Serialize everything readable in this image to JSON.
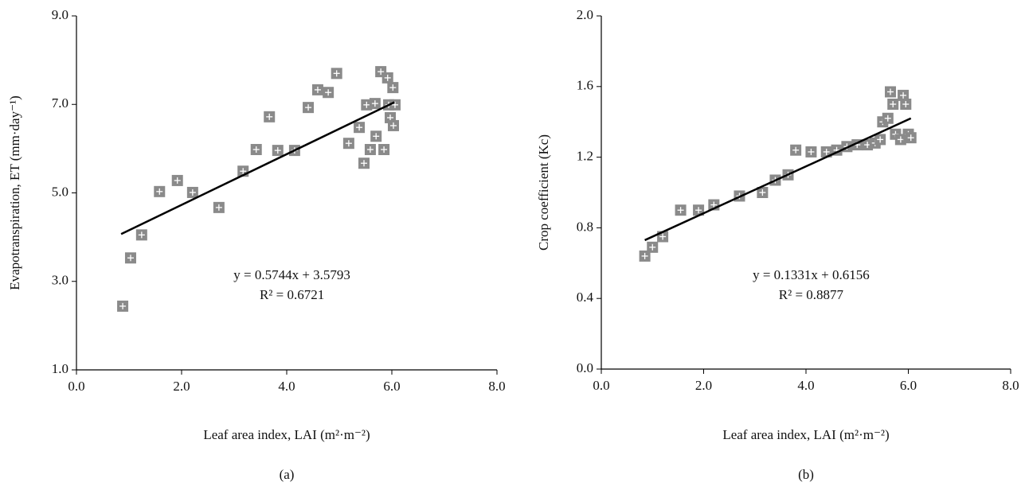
{
  "chart_data": [
    {
      "type": "scatter",
      "caption": "(a)",
      "xlabel": "Leaf area index, LAI (m²·m⁻²)",
      "ylabel": "Evapotranspiration, ET (mm·day⁻¹)",
      "annotations": [
        "y = 0.5744x + 3.5793",
        "R² = 0.6721"
      ],
      "color": "#8a8a8a",
      "xlim": [
        0,
        8
      ],
      "ylim": [
        1,
        9
      ],
      "xticks": [
        {
          "value": 0,
          "label": "0.0"
        },
        {
          "value": 2,
          "label": "2.0"
        },
        {
          "value": 4,
          "label": "4.0"
        },
        {
          "value": 6,
          "label": "6.0"
        },
        {
          "value": 8,
          "label": "8.0"
        }
      ],
      "yticks": [
        {
          "value": 1,
          "label": "1.0"
        },
        {
          "value": 3,
          "label": "3.0"
        },
        {
          "value": 5,
          "label": "5.0"
        },
        {
          "value": 7,
          "label": "7.0"
        },
        {
          "value": 9,
          "label": "9.0"
        }
      ],
      "x": [
        0.88,
        1.03,
        1.24,
        1.58,
        1.92,
        2.21,
        2.71,
        3.17,
        3.42,
        3.67,
        3.83,
        4.15,
        4.41,
        4.59,
        4.79,
        4.95,
        5.18,
        5.38,
        5.47,
        5.52,
        5.59,
        5.68,
        5.7,
        5.79,
        5.85,
        5.92,
        5.94,
        5.97,
        6.02,
        6.03,
        6.06
      ],
      "values": [
        2.44,
        3.53,
        4.05,
        5.03,
        5.28,
        5.01,
        4.67,
        5.49,
        5.98,
        6.72,
        5.96,
        5.96,
        6.93,
        7.33,
        7.27,
        7.7,
        6.12,
        6.48,
        5.67,
        6.99,
        5.98,
        7.02,
        6.28,
        7.74,
        5.98,
        7.6,
        6.99,
        6.7,
        7.38,
        6.52,
        6.99
      ],
      "trendline": {
        "x": [
          0.85,
          6.05
        ],
        "values": [
          4.07,
          7.05
        ]
      }
    },
    {
      "type": "scatter",
      "caption": "(b)",
      "xlabel": "Leaf area index, LAI (m²·m⁻²)",
      "ylabel": "Crop coefficient (Kc)",
      "annotations": [
        "y = 0.1331x + 0.6156",
        "R² = 0.8877"
      ],
      "color": "#8a8a8a",
      "xlim": [
        0,
        8
      ],
      "ylim": [
        0,
        2
      ],
      "xticks": [
        {
          "value": 0,
          "label": "0.0"
        },
        {
          "value": 2,
          "label": "2.0"
        },
        {
          "value": 4,
          "label": "4.0"
        },
        {
          "value": 6,
          "label": "6.0"
        },
        {
          "value": 8,
          "label": "8.0"
        }
      ],
      "yticks": [
        {
          "value": 0,
          "label": "0.0"
        },
        {
          "value": 0.4,
          "label": "0.4"
        },
        {
          "value": 0.8,
          "label": "0.8"
        },
        {
          "value": 1.2,
          "label": "1.2"
        },
        {
          "value": 1.6,
          "label": "1.6"
        },
        {
          "value": 2,
          "label": "2.0"
        }
      ],
      "x": [
        0.85,
        1.0,
        1.2,
        1.55,
        1.9,
        2.2,
        2.7,
        3.15,
        3.4,
        3.65,
        3.8,
        4.1,
        4.4,
        4.6,
        4.8,
        5.0,
        5.2,
        5.35,
        5.45,
        5.5,
        5.6,
        5.65,
        5.7,
        5.75,
        5.85,
        5.9,
        5.95,
        6.0,
        6.05
      ],
      "values": [
        0.64,
        0.69,
        0.75,
        0.9,
        0.9,
        0.93,
        0.98,
        1.0,
        1.07,
        1.1,
        1.24,
        1.23,
        1.23,
        1.24,
        1.26,
        1.27,
        1.27,
        1.28,
        1.3,
        1.4,
        1.42,
        1.57,
        1.5,
        1.33,
        1.3,
        1.55,
        1.5,
        1.33,
        1.31
      ],
      "trendline": {
        "x": [
          0.85,
          6.05
        ],
        "values": [
          0.73,
          1.42
        ]
      }
    }
  ]
}
